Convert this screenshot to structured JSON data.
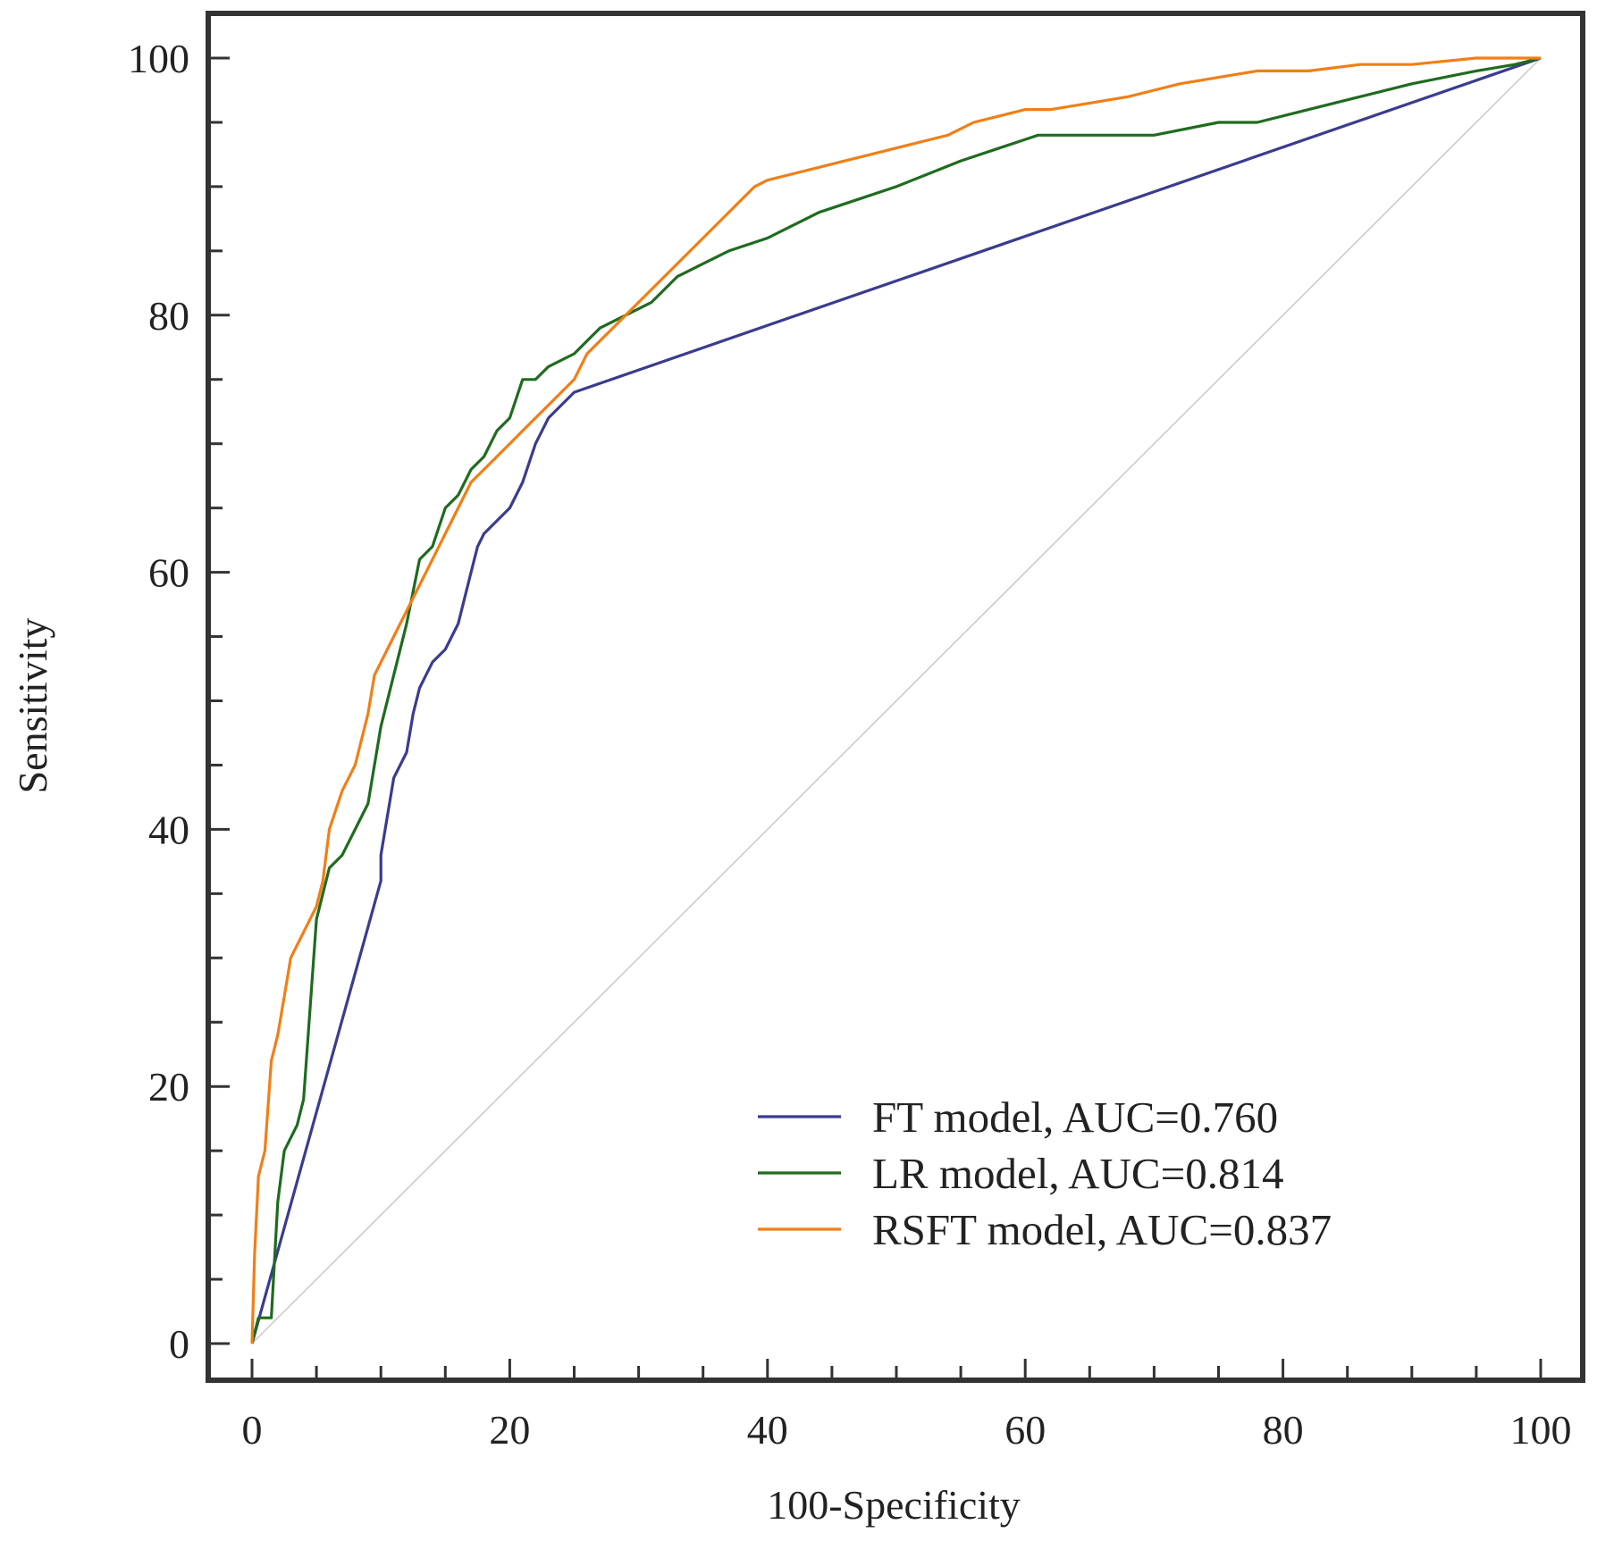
{
  "chart_data": {
    "type": "line",
    "title": "",
    "xlabel": "100-Specificity",
    "ylabel": "Sensitivity",
    "xlim": [
      0,
      100
    ],
    "ylim": [
      0,
      100
    ],
    "x_ticks": [
      0,
      20,
      40,
      60,
      80,
      100
    ],
    "y_ticks": [
      0,
      20,
      40,
      60,
      80,
      100
    ],
    "x_tick_labels": [
      "0",
      "20",
      "40",
      "60",
      "80",
      "100"
    ],
    "y_tick_labels": [
      "0",
      "20",
      "40",
      "60",
      "80",
      "100"
    ],
    "legend_position": "bottom-right",
    "reference_line": {
      "name": "chance diagonal",
      "color": "#c8c8c8",
      "x": [
        0,
        100
      ],
      "y": [
        0,
        100
      ]
    },
    "series": [
      {
        "name": "FT model",
        "legend": "FT model, AUC=0.760",
        "color": "#3b3b8f",
        "x": [
          0,
          10,
          10,
          10.5,
          11,
          12,
          12.5,
          13,
          13.5,
          14,
          15,
          16,
          17,
          17.5,
          18,
          19,
          20,
          21,
          22,
          22.5,
          23,
          24,
          25,
          100
        ],
        "y": [
          0,
          36,
          38,
          41,
          44,
          46,
          49,
          51,
          52,
          53,
          54,
          56,
          60,
          62,
          63,
          64,
          65,
          67,
          70,
          71,
          72,
          73,
          74,
          100
        ]
      },
      {
        "name": "LR model",
        "legend": "LR model, AUC=0.814",
        "color": "#1f6b1f",
        "x": [
          0,
          0.5,
          1.5,
          2,
          2.5,
          3.5,
          4,
          4.5,
          5,
          6,
          7,
          8,
          9,
          10,
          11,
          12,
          13,
          14,
          15,
          16,
          17,
          18,
          19,
          20,
          21,
          22,
          23,
          25,
          27,
          29,
          31,
          33,
          35,
          37,
          40,
          42,
          44,
          47,
          50,
          55,
          58,
          61,
          65,
          70,
          75,
          78,
          82,
          86,
          90,
          95,
          98,
          100
        ],
        "y": [
          0,
          2,
          2,
          11,
          15,
          17,
          19,
          26,
          33,
          37,
          38,
          40,
          42,
          48,
          52,
          56,
          61,
          62,
          65,
          66,
          68,
          69,
          71,
          72,
          75,
          75,
          76,
          77,
          79,
          80,
          81,
          83,
          84,
          85,
          86,
          87,
          88,
          89,
          90,
          92,
          93,
          94,
          94,
          94,
          95,
          95,
          96,
          97,
          98,
          99,
          99.5,
          100
        ]
      },
      {
        "name": "RSFT model",
        "legend": "RSFT model, AUC=0.837",
        "color": "#f07f17",
        "x": [
          0,
          0.2,
          0.5,
          1,
          1.5,
          2,
          2.5,
          3,
          3.5,
          4,
          5,
          5.5,
          6,
          7,
          8,
          9,
          9.5,
          10,
          11,
          12,
          13,
          14,
          15,
          16,
          17,
          18,
          19,
          20,
          21,
          22,
          23,
          24,
          25,
          26,
          27,
          28,
          29,
          30,
          31,
          32,
          33,
          34,
          35,
          36,
          37,
          38,
          39,
          40,
          42,
          44,
          46,
          48,
          50,
          52,
          54,
          56,
          58,
          60,
          62,
          65,
          68,
          70,
          72,
          75,
          78,
          82,
          86,
          90,
          95,
          100
        ],
        "y": [
          0,
          7,
          13,
          15,
          22,
          24,
          27,
          30,
          31,
          32,
          34,
          36,
          40,
          43,
          45,
          49,
          52,
          53,
          55,
          57,
          59,
          61,
          63,
          65,
          67,
          68,
          69,
          70,
          71,
          72,
          73,
          74,
          75,
          77,
          78,
          79,
          80,
          81,
          82,
          83,
          84,
          85,
          86,
          87,
          88,
          89,
          90,
          90.5,
          91,
          91.5,
          92,
          92.5,
          93,
          93.5,
          94,
          95,
          95.5,
          96,
          96,
          96.5,
          97,
          97.5,
          98,
          98.5,
          99,
          99,
          99.5,
          99.5,
          100,
          100
        ]
      }
    ]
  }
}
